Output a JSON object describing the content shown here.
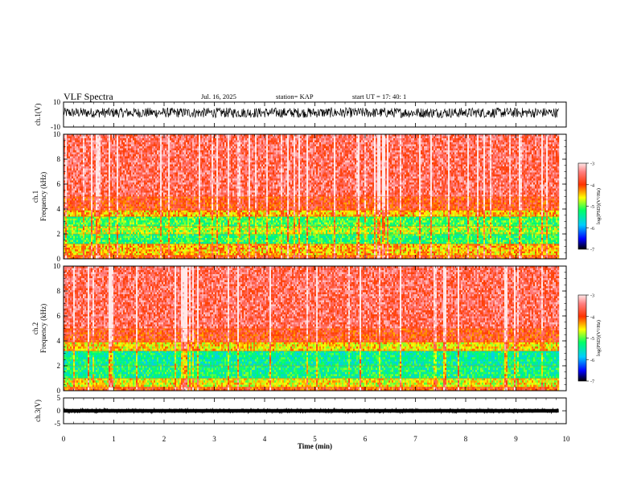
{
  "header": {
    "title": "VLF Spectra",
    "date": "Jul. 16, 2025",
    "station": "station= KAP",
    "start": "start UT = 17: 40: 1"
  },
  "chart_data": [
    {
      "type": "line",
      "panel": "ch1-waveform",
      "ylabel": "ch.1(V)",
      "ylim": [
        -10,
        10
      ],
      "yticks": [
        "10",
        "-10"
      ],
      "xlim": [
        0,
        10
      ],
      "description_values": {
        "mean": 1.5,
        "spread": 4
      },
      "x_end": 9.85
    },
    {
      "type": "heatmap",
      "panel": "ch1-spectrogram",
      "ylabel": "ch.1 Frequency (kHz)",
      "ylim": [
        0,
        10
      ],
      "yticks": [
        "0",
        "2",
        "4",
        "6",
        "8",
        "10"
      ],
      "xlim": [
        0,
        10
      ],
      "x_end": 9.85,
      "bands_khz": [
        {
          "from": 0,
          "to": 0.3,
          "level": -4.0
        },
        {
          "from": 0.3,
          "to": 1.2,
          "level": -4.4
        },
        {
          "from": 1.2,
          "to": 2.0,
          "level": -5.2
        },
        {
          "from": 2.0,
          "to": 2.6,
          "level": -4.8
        },
        {
          "from": 2.6,
          "to": 3.4,
          "level": -5.1
        },
        {
          "from": 3.4,
          "to": 3.9,
          "level": -4.4
        },
        {
          "from": 3.9,
          "to": 5.0,
          "level": -3.9
        },
        {
          "from": 5.0,
          "to": 10.0,
          "level": -3.6
        }
      ],
      "colorbar": {
        "label": "log(PSD)(V²/Hz)",
        "min": -7,
        "max": -3,
        "ticks": [
          "-3",
          "-4",
          "-5",
          "-6",
          "-7"
        ]
      }
    },
    {
      "type": "heatmap",
      "panel": "ch2-spectrogram",
      "ylabel": "ch.2 Frequency (kHz)",
      "ylim": [
        0,
        10
      ],
      "yticks": [
        "0",
        "2",
        "4",
        "6",
        "8",
        "10"
      ],
      "xlim": [
        0,
        10
      ],
      "x_end": 9.85,
      "bands_khz": [
        {
          "from": 0,
          "to": 0.3,
          "level": -4.0
        },
        {
          "from": 0.3,
          "to": 1.0,
          "level": -4.6
        },
        {
          "from": 1.0,
          "to": 2.0,
          "level": -5.3
        },
        {
          "from": 2.0,
          "to": 3.2,
          "level": -5.4
        },
        {
          "from": 3.2,
          "to": 3.9,
          "level": -4.5
        },
        {
          "from": 3.9,
          "to": 5.0,
          "level": -3.9
        },
        {
          "from": 5.0,
          "to": 10.0,
          "level": -3.6
        }
      ],
      "colorbar": {
        "label": "log(PSD)(V²/Hz)",
        "min": -7,
        "max": -3,
        "ticks": [
          "-3",
          "-4",
          "-5",
          "-6",
          "-7"
        ]
      }
    },
    {
      "type": "line",
      "panel": "ch3-waveform",
      "ylabel": "ch.3(V)",
      "ylim": [
        -5,
        5
      ],
      "yticks": [
        "5",
        "0",
        "-5"
      ],
      "xlim": [
        0,
        10
      ],
      "x_end": 9.85,
      "description_values": {
        "mean": 0,
        "spread": 0.7
      }
    }
  ],
  "xaxis": {
    "label": "Time (min)",
    "ticks": [
      "0",
      "1",
      "2",
      "3",
      "4",
      "5",
      "6",
      "7",
      "8",
      "9",
      "10"
    ]
  },
  "colors": {
    "waveform": "#000000",
    "axis": "#000000"
  }
}
